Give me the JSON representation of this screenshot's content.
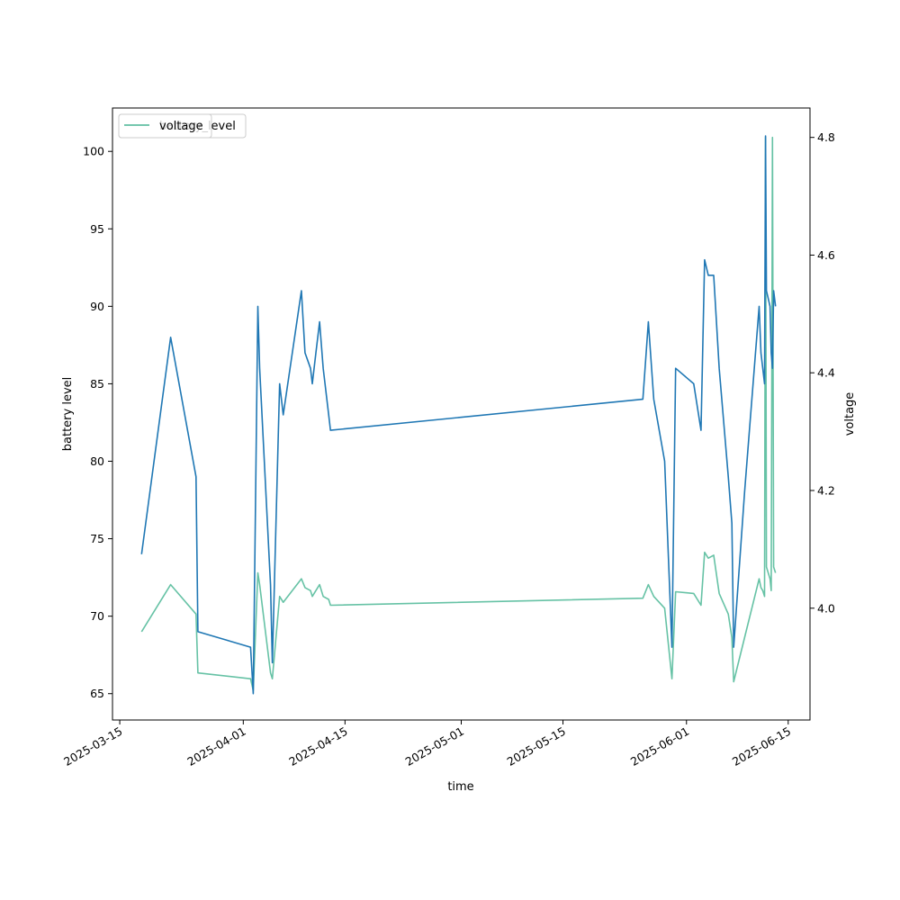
{
  "chart_data": {
    "type": "line",
    "xlabel": "time",
    "ylabel_left": "battery level",
    "ylabel_right": "voltage",
    "legend": {
      "position": "top-left",
      "labels": [
        "battery_level",
        "voltage"
      ]
    },
    "x_ticks": [
      "2025-03-15",
      "2025-04-01",
      "2025-04-15",
      "2025-05-01",
      "2025-05-15",
      "2025-06-01",
      "2025-06-15"
    ],
    "y_left_ticks": [
      65,
      70,
      75,
      80,
      85,
      90,
      95,
      100
    ],
    "y_right_ticks": [
      "4.0",
      "4.2",
      "4.4",
      "4.6",
      "4.8"
    ],
    "x_range": [
      "2025-03-14",
      "2025-06-18"
    ],
    "y_left_range": [
      63.3,
      102.8
    ],
    "y_right_range": [
      3.81,
      4.85
    ],
    "grid": false,
    "colors": {
      "battery_level": "#1f77b4",
      "voltage": "#66c2a5"
    },
    "series": [
      {
        "name": "battery_level",
        "axis": "left",
        "points": [
          [
            "2025-03-18",
            74
          ],
          [
            "2025-03-22",
            88
          ],
          [
            "2025-03-25 12:00",
            79
          ],
          [
            "2025-03-25 18:00",
            69
          ],
          [
            "2025-04-02",
            68
          ],
          [
            "2025-04-02 09:00",
            65
          ],
          [
            "2025-04-03",
            90
          ],
          [
            "2025-04-03 06:00",
            86
          ],
          [
            "2025-04-04 18:00",
            72
          ],
          [
            "2025-04-05",
            67
          ],
          [
            "2025-04-06",
            85
          ],
          [
            "2025-04-06 12:00",
            83
          ],
          [
            "2025-04-09",
            91
          ],
          [
            "2025-04-09 12:00",
            87
          ],
          [
            "2025-04-10 06:00",
            86
          ],
          [
            "2025-04-10 12:00",
            85
          ],
          [
            "2025-04-11",
            87
          ],
          [
            "2025-04-11 12:00",
            89
          ],
          [
            "2025-04-12",
            86
          ],
          [
            "2025-04-12 18:00",
            83
          ],
          [
            "2025-04-13",
            82
          ],
          [
            "2025-05-26",
            84
          ],
          [
            "2025-05-26 18:00",
            89
          ],
          [
            "2025-05-27 12:00",
            84
          ],
          [
            "2025-05-29",
            80
          ],
          [
            "2025-05-30",
            68
          ],
          [
            "2025-05-30 12:00",
            86
          ],
          [
            "2025-06-02",
            85
          ],
          [
            "2025-06-03",
            82
          ],
          [
            "2025-06-03 12:00",
            93
          ],
          [
            "2025-06-04",
            92
          ],
          [
            "2025-06-04 18:00",
            92
          ],
          [
            "2025-06-05 12:00",
            86
          ],
          [
            "2025-06-06 18:00",
            79
          ],
          [
            "2025-06-07 06:00",
            76
          ],
          [
            "2025-06-07 12:00",
            68
          ],
          [
            "2025-06-09",
            78
          ],
          [
            "2025-06-11",
            90
          ],
          [
            "2025-06-11 06:00",
            87
          ],
          [
            "2025-06-11 12:00",
            86
          ],
          [
            "2025-06-11 18:00",
            85
          ],
          [
            "2025-06-11 21:00",
            101
          ],
          [
            "2025-06-12",
            91
          ],
          [
            "2025-06-12 12:00",
            90
          ],
          [
            "2025-06-12 16:00",
            87
          ],
          [
            "2025-06-12 20:00",
            86
          ],
          [
            "2025-06-13",
            91
          ],
          [
            "2025-06-13 06:00",
            90
          ]
        ]
      },
      {
        "name": "voltage",
        "axis": "right",
        "points": [
          [
            "2025-03-18",
            3.96
          ],
          [
            "2025-03-22",
            4.04
          ],
          [
            "2025-03-25 12:00",
            3.99
          ],
          [
            "2025-03-25 18:00",
            3.89
          ],
          [
            "2025-04-02",
            3.88
          ],
          [
            "2025-04-02 09:00",
            3.86
          ],
          [
            "2025-04-03",
            4.06
          ],
          [
            "2025-04-03 06:00",
            4.04
          ],
          [
            "2025-04-04 18:00",
            3.89
          ],
          [
            "2025-04-05",
            3.88
          ],
          [
            "2025-04-06",
            4.02
          ],
          [
            "2025-04-06 12:00",
            4.01
          ],
          [
            "2025-04-09",
            4.05
          ],
          [
            "2025-04-09 12:00",
            4.035
          ],
          [
            "2025-04-10 06:00",
            4.03
          ],
          [
            "2025-04-10 12:00",
            4.02
          ],
          [
            "2025-04-11",
            4.03
          ],
          [
            "2025-04-11 12:00",
            4.04
          ],
          [
            "2025-04-12",
            4.02
          ],
          [
            "2025-04-12 18:00",
            4.015
          ],
          [
            "2025-04-13",
            4.005
          ],
          [
            "2025-05-26",
            4.017
          ],
          [
            "2025-05-26 18:00",
            4.04
          ],
          [
            "2025-05-27 12:00",
            4.02
          ],
          [
            "2025-05-29",
            4.0
          ],
          [
            "2025-05-30",
            3.88
          ],
          [
            "2025-05-30 12:00",
            4.028
          ],
          [
            "2025-06-02",
            4.025
          ],
          [
            "2025-06-03",
            4.005
          ],
          [
            "2025-06-03 12:00",
            4.095
          ],
          [
            "2025-06-04",
            4.085
          ],
          [
            "2025-06-04 18:00",
            4.09
          ],
          [
            "2025-06-05 12:00",
            4.025
          ],
          [
            "2025-06-06 18:00",
            3.99
          ],
          [
            "2025-06-07 06:00",
            3.95
          ],
          [
            "2025-06-07 12:00",
            3.875
          ],
          [
            "2025-06-09",
            3.95
          ],
          [
            "2025-06-11",
            4.05
          ],
          [
            "2025-06-11 06:00",
            4.035
          ],
          [
            "2025-06-11 12:00",
            4.03
          ],
          [
            "2025-06-11 18:00",
            4.02
          ],
          [
            "2025-06-11 21:00",
            4.8
          ],
          [
            "2025-06-12",
            4.07
          ],
          [
            "2025-06-12 12:00",
            4.05
          ],
          [
            "2025-06-12 16:00",
            4.03
          ],
          [
            "2025-06-12 20:00",
            4.8
          ],
          [
            "2025-06-13",
            4.07
          ],
          [
            "2025-06-13 06:00",
            4.06
          ]
        ]
      }
    ]
  }
}
